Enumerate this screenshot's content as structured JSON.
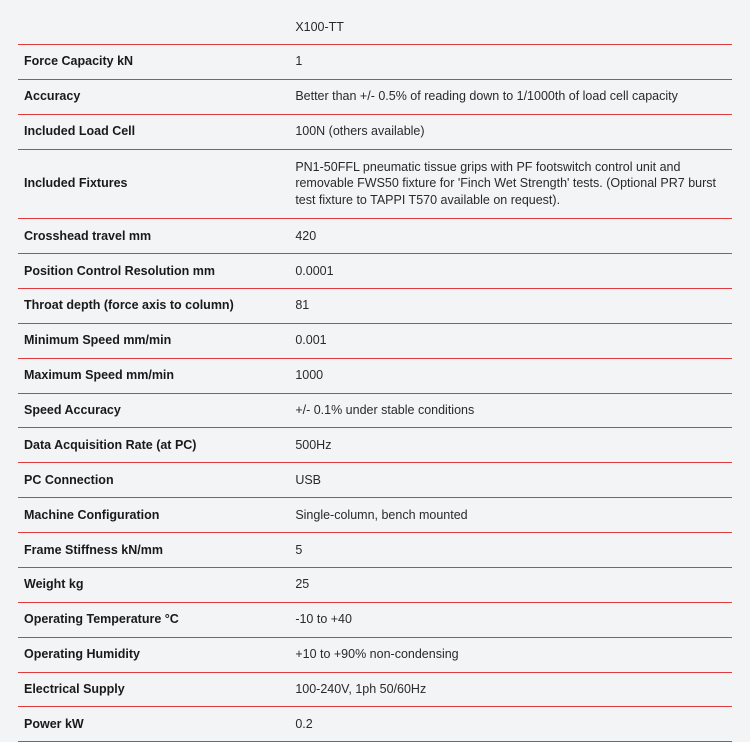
{
  "table": {
    "type": "table",
    "background_color": "#f2f4f5",
    "border_color": "#e03a3e",
    "text_color": "#2a2a2a",
    "label_font_weight": 600,
    "value_font_weight": 400,
    "font_size": 12.5,
    "columns": [
      {
        "key": "label",
        "width_pct": 38
      },
      {
        "key": "value",
        "width_pct": 62
      }
    ],
    "header": {
      "label": "",
      "value": "X100-TT"
    },
    "rows": [
      {
        "label": "Force Capacity kN",
        "value": "1"
      },
      {
        "label": "Accuracy",
        "value": "Better than +/- 0.5% of reading down to 1/1000th of load cell capacity"
      },
      {
        "label": "Included Load Cell",
        "value": "100N (others available)"
      },
      {
        "label": "Included Fixtures",
        "value": "PN1-50FFL pneumatic tissue grips with PF footswitch control unit and removable FWS50 fixture for 'Finch Wet Strength' tests. (Optional PR7 burst test fixture to TAPPI T570 available on request).",
        "multi_line": true
      },
      {
        "label": "Crosshead travel mm",
        "value": "420"
      },
      {
        "label": "Position Control Resolution mm",
        "value": "0.0001"
      },
      {
        "label": "Throat depth (force axis to column)",
        "value": "81"
      },
      {
        "label": "Minimum Speed mm/min",
        "value": "0.001"
      },
      {
        "label": "Maximum Speed mm/min",
        "value": "1000"
      },
      {
        "label": "Speed Accuracy",
        "value": "+/- 0.1% under stable conditions"
      },
      {
        "label": "Data Acquisition Rate (at PC)",
        "value": "500Hz"
      },
      {
        "label": "PC Connection",
        "value": "USB"
      },
      {
        "label": "Machine Configuration",
        "value": "Single-column, bench mounted"
      },
      {
        "label": "Frame Stiffness kN/mm",
        "value": "5"
      },
      {
        "label": "Weight kg",
        "value": "25"
      },
      {
        "label": "Operating Temperature °C",
        "value": "-10 to +40"
      },
      {
        "label": "Operating Humidity",
        "value": "+10 to +90% non-condensing"
      },
      {
        "label": "Electrical Supply",
        "value": "100-240V, 1ph 50/60Hz"
      },
      {
        "label": "Power kW",
        "value": "0.2"
      }
    ]
  }
}
